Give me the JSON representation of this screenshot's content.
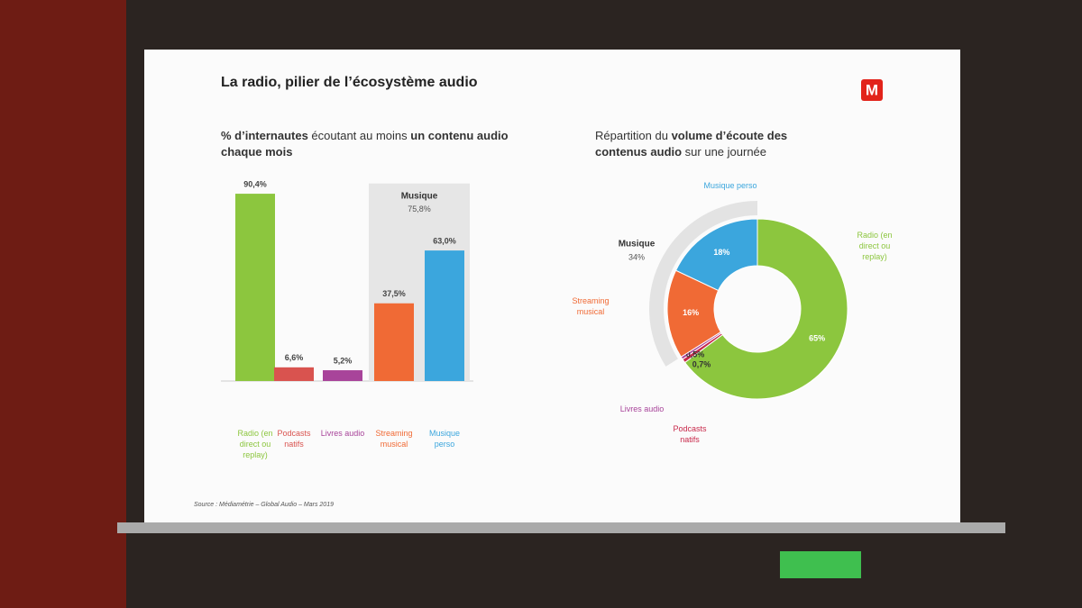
{
  "slide": {
    "title": "La radio, pilier de l’écosystème audio",
    "logo": "M",
    "source": "Source : Médiamétrie – Global Audio – Mars 2019"
  },
  "chart_data": [
    {
      "type": "bar",
      "title": [
        {
          "text": "% d’internautes",
          "bold": true
        },
        {
          "text": " écoutant au moins ",
          "bold": false
        },
        {
          "text": "un contenu audio chaque mois",
          "bold": true
        }
      ],
      "categories": [
        "Radio (en direct ou replay)",
        "Podcasts natifs",
        "Livres audio",
        "Streaming musical",
        "Musique perso"
      ],
      "values": [
        90.4,
        6.6,
        5.2,
        37.5,
        63.0
      ],
      "value_labels": [
        "90,4%",
        "6,6%",
        "5,2%",
        "37,5%",
        "63,0%"
      ],
      "colors": [
        "#8cc63e",
        "#d9534f",
        "#a8449a",
        "#f06a35",
        "#3ba6dd"
      ],
      "group": {
        "name": "Musique",
        "value": 75.8,
        "value_label": "75,8%"
      }
    },
    {
      "type": "donut",
      "title": [
        {
          "text": "Répartition du ",
          "bold": false
        },
        {
          "text": "volume d’écoute des contenus audio",
          "bold": true
        },
        {
          "text": " sur une journée",
          "bold": false
        }
      ],
      "categories": [
        "Radio (en direct ou replay)",
        "Podcasts natifs",
        "Livres audio",
        "Streaming musical",
        "Musique perso"
      ],
      "values": [
        65,
        0.7,
        0.5,
        16,
        18
      ],
      "value_labels": [
        "65%",
        "0,7%",
        "0,5%",
        "16%",
        "18%"
      ],
      "colors": [
        "#8cc63e",
        "#c8284a",
        "#a8449a",
        "#f06a35",
        "#3ba6dd"
      ],
      "group": {
        "name": "Musique",
        "value": 34,
        "value_label": "34%"
      }
    }
  ]
}
